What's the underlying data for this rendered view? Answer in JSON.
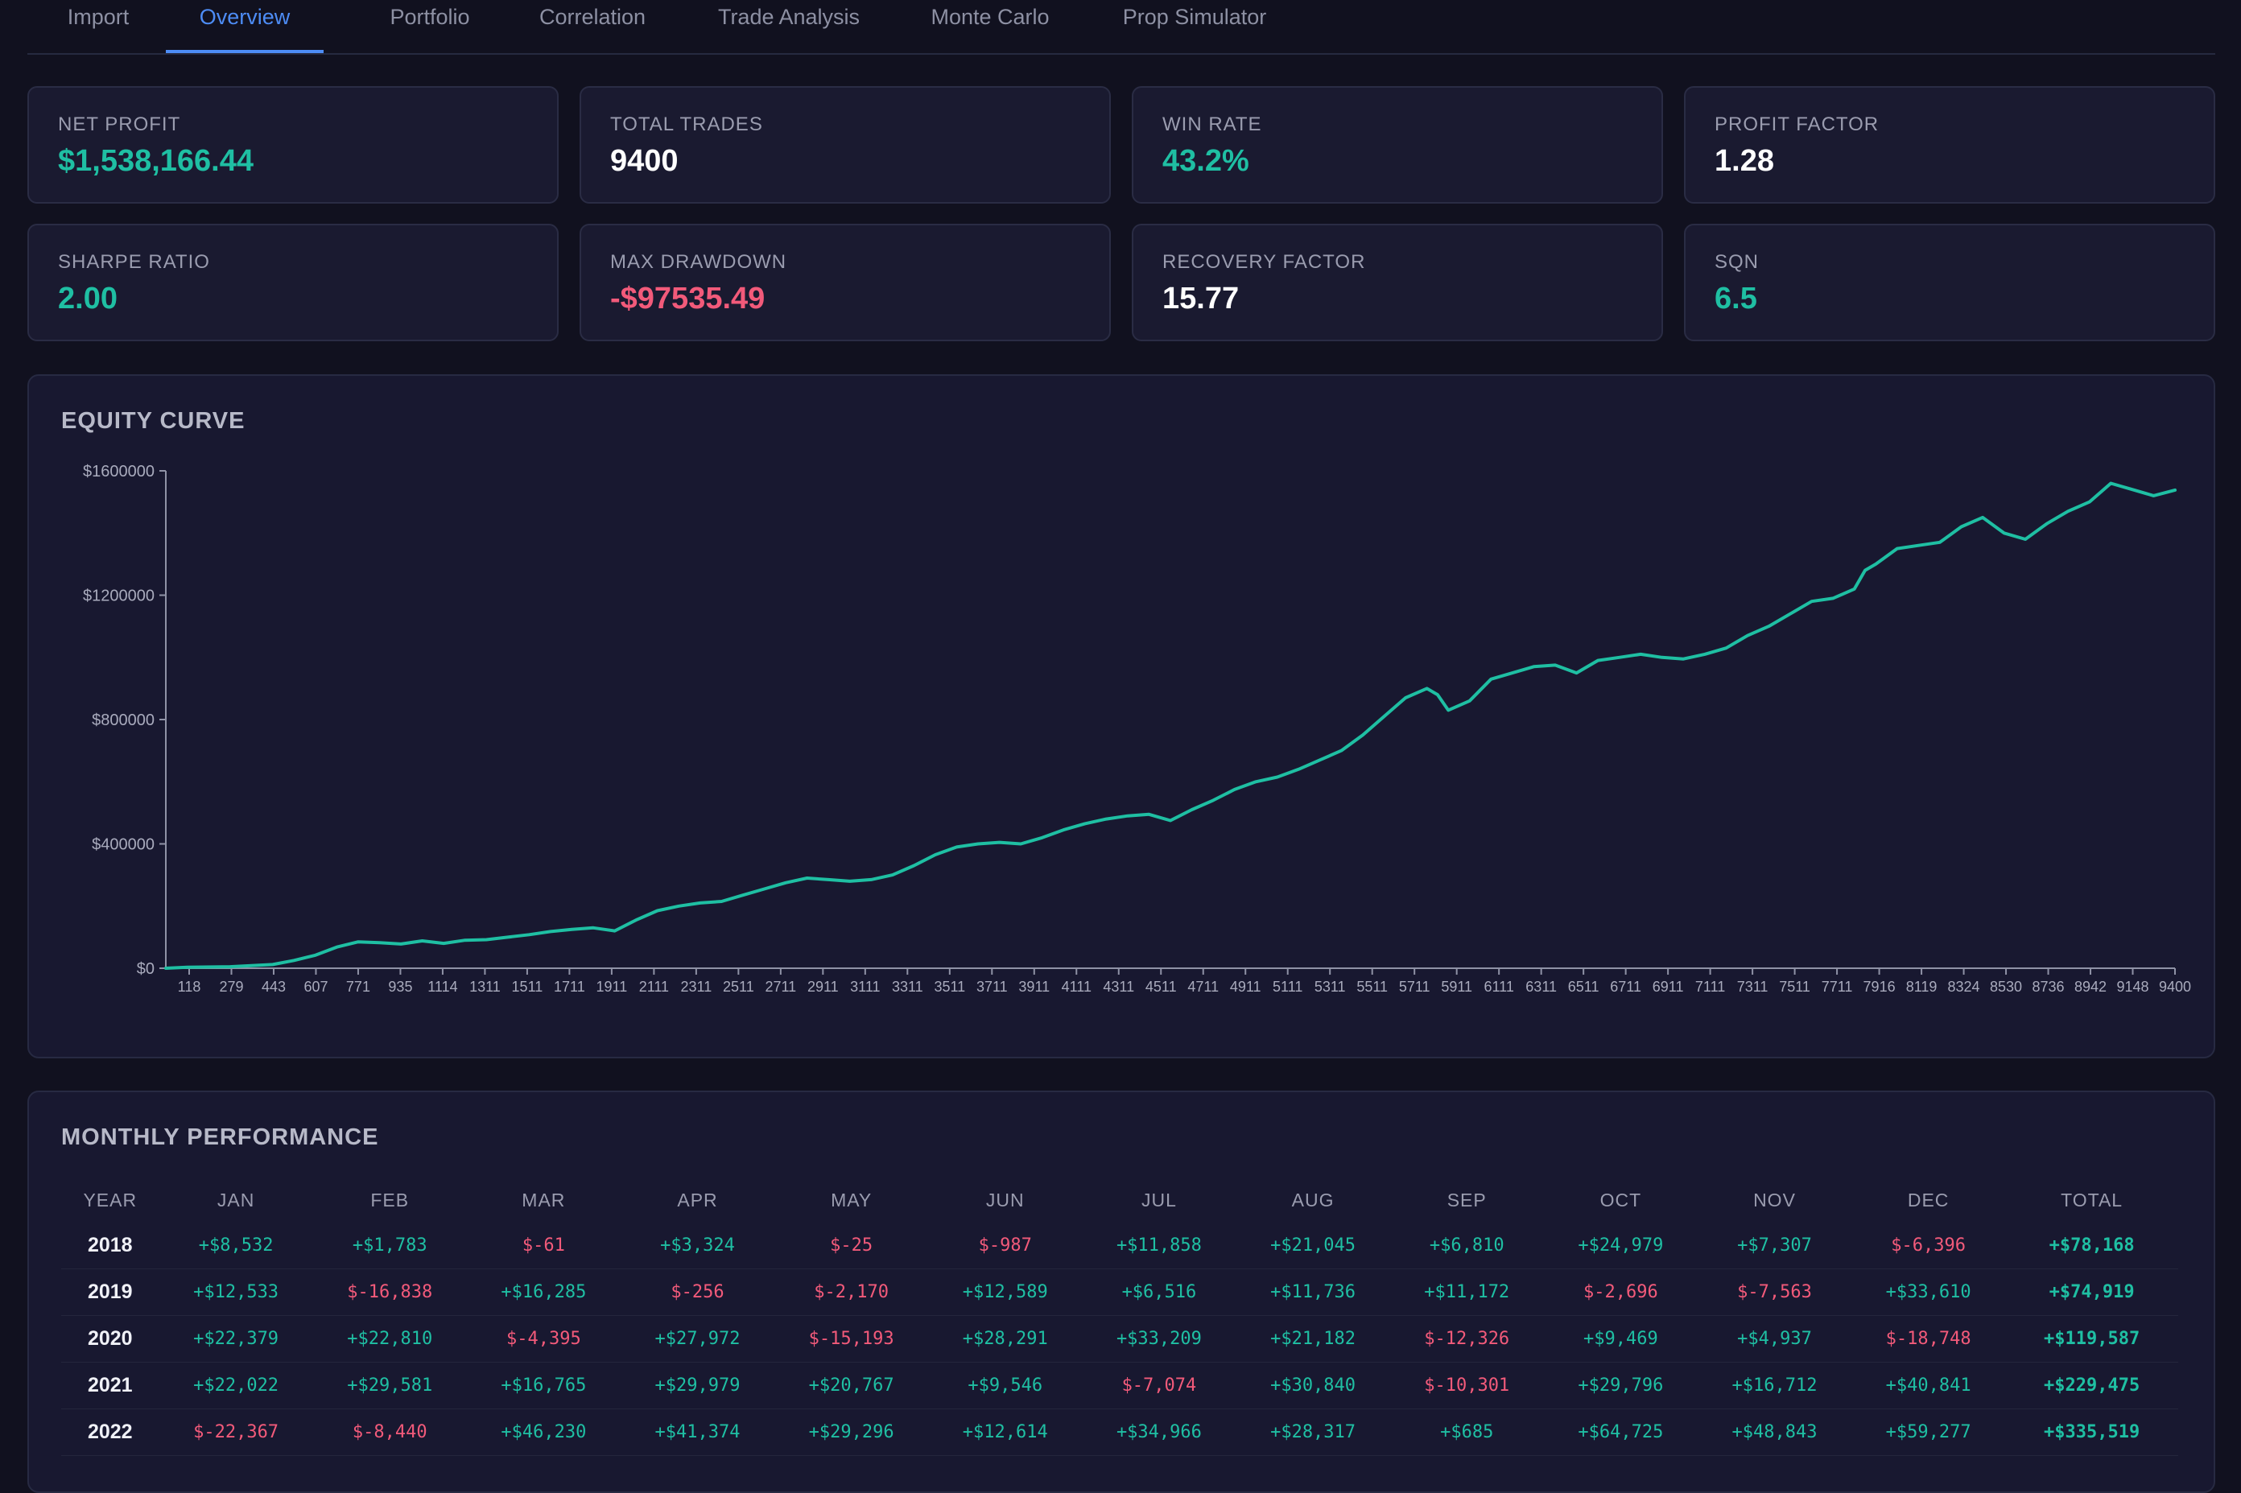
{
  "tabs": [
    {
      "label": "Import",
      "active": false
    },
    {
      "label": "Overview",
      "active": true
    },
    {
      "label": "Portfolio",
      "active": false
    },
    {
      "label": "Correlation",
      "active": false
    },
    {
      "label": "Trade Analysis",
      "active": false
    },
    {
      "label": "Monte Carlo",
      "active": false
    },
    {
      "label": "Prop Simulator",
      "active": false
    }
  ],
  "stats": [
    {
      "label": "NET PROFIT",
      "value": "$1,538,166.44",
      "tone": "pos"
    },
    {
      "label": "TOTAL TRADES",
      "value": "9400",
      "tone": "neu"
    },
    {
      "label": "WIN RATE",
      "value": "43.2%",
      "tone": "pos"
    },
    {
      "label": "PROFIT FACTOR",
      "value": "1.28",
      "tone": "neu"
    },
    {
      "label": "SHARPE RATIO",
      "value": "2.00",
      "tone": "pos"
    },
    {
      "label": "MAX DRAWDOWN",
      "value": "-$97535.49",
      "tone": "neg"
    },
    {
      "label": "RECOVERY FACTOR",
      "value": "15.77",
      "tone": "neu"
    },
    {
      "label": "SQN",
      "value": "6.5",
      "tone": "pos"
    }
  ],
  "equity": {
    "title": "EQUITY CURVE"
  },
  "chart_data": {
    "type": "line",
    "title": "EQUITY CURVE",
    "xlabel": "",
    "ylabel": "",
    "xlim": [
      0,
      9400
    ],
    "ylim": [
      0,
      1600000
    ],
    "yticks": [
      {
        "value": 0,
        "label": "$0"
      },
      {
        "value": 400000,
        "label": "$400000"
      },
      {
        "value": 800000,
        "label": "$800000"
      },
      {
        "value": 1200000,
        "label": "$1200000"
      },
      {
        "value": 1600000,
        "label": "$1600000"
      }
    ],
    "xticks": [
      "118",
      "279",
      "443",
      "607",
      "771",
      "935",
      "1114",
      "1311",
      "1511",
      "1711",
      "1911",
      "2111",
      "2311",
      "2511",
      "2711",
      "2911",
      "3111",
      "3311",
      "3511",
      "3711",
      "3911",
      "4111",
      "4311",
      "4511",
      "4711",
      "4911",
      "5111",
      "5311",
      "5511",
      "5711",
      "5911",
      "6111",
      "6311",
      "6511",
      "6711",
      "6911",
      "7111",
      "7311",
      "7511",
      "7711",
      "7916",
      "8119",
      "8324",
      "8530",
      "8736",
      "8942",
      "9148",
      "9400"
    ],
    "grid": false,
    "color": "#1fbfa3",
    "series": [
      {
        "x": [
          0,
          100,
          300,
          500,
          600,
          700,
          800,
          900,
          1000,
          1100,
          1200,
          1300,
          1400,
          1500,
          1600,
          1700,
          1800,
          1900,
          2000,
          2100,
          2200,
          2300,
          2400,
          2500,
          2600,
          2700,
          2800,
          2900,
          3000,
          3100,
          3200,
          3300,
          3400,
          3500,
          3600,
          3700,
          3800,
          3900,
          4000,
          4100,
          4200,
          4300,
          4400,
          4500,
          4600,
          4700,
          4800,
          4900,
          5000,
          5100,
          5200,
          5300,
          5400,
          5500,
          5600,
          5700,
          5800,
          5900,
          5950,
          6000,
          6100,
          6200,
          6300,
          6400,
          6500,
          6600,
          6700,
          6800,
          6900,
          7000,
          7100,
          7200,
          7300,
          7400,
          7500,
          7600,
          7700,
          7800,
          7900,
          7950,
          8000,
          8100,
          8200,
          8300,
          8400,
          8500,
          8600,
          8700,
          8800,
          8900,
          9000,
          9100,
          9200,
          9300,
          9400
        ],
        "y": [
          0,
          3000,
          5000,
          12000,
          25000,
          42000,
          68000,
          85000,
          82000,
          78000,
          88000,
          80000,
          90000,
          92000,
          100000,
          108000,
          118000,
          125000,
          130000,
          120000,
          155000,
          185000,
          200000,
          210000,
          215000,
          235000,
          255000,
          275000,
          290000,
          285000,
          280000,
          285000,
          300000,
          330000,
          365000,
          390000,
          400000,
          405000,
          400000,
          420000,
          445000,
          465000,
          480000,
          490000,
          495000,
          475000,
          510000,
          540000,
          575000,
          600000,
          615000,
          640000,
          670000,
          700000,
          750000,
          810000,
          870000,
          900000,
          880000,
          830000,
          860000,
          930000,
          950000,
          970000,
          975000,
          950000,
          990000,
          1000000,
          1010000,
          1000000,
          995000,
          1010000,
          1030000,
          1070000,
          1100000,
          1140000,
          1180000,
          1190000,
          1220000,
          1280000,
          1300000,
          1350000,
          1360000,
          1370000,
          1420000,
          1450000,
          1400000,
          1380000,
          1430000,
          1470000,
          1500000,
          1560000,
          1540000,
          1520000,
          1538166
        ]
      }
    ]
  },
  "monthly": {
    "title": "MONTHLY PERFORMANCE",
    "headers": [
      "YEAR",
      "JAN",
      "FEB",
      "MAR",
      "APR",
      "MAY",
      "JUN",
      "JUL",
      "AUG",
      "SEP",
      "OCT",
      "NOV",
      "DEC",
      "TOTAL"
    ],
    "rows": [
      {
        "year": "2018",
        "cells": [
          "+$8,532",
          "+$1,783",
          "$-61",
          "+$3,324",
          "$-25",
          "$-987",
          "+$11,858",
          "+$21,045",
          "+$6,810",
          "+$24,979",
          "+$7,307",
          "$-6,396"
        ],
        "total": "+$78,168"
      },
      {
        "year": "2019",
        "cells": [
          "+$12,533",
          "$-16,838",
          "+$16,285",
          "$-256",
          "$-2,170",
          "+$12,589",
          "+$6,516",
          "+$11,736",
          "+$11,172",
          "$-2,696",
          "$-7,563",
          "+$33,610"
        ],
        "total": "+$74,919"
      },
      {
        "year": "2020",
        "cells": [
          "+$22,379",
          "+$22,810",
          "$-4,395",
          "+$27,972",
          "$-15,193",
          "+$28,291",
          "+$33,209",
          "+$21,182",
          "$-12,326",
          "+$9,469",
          "+$4,937",
          "$-18,748"
        ],
        "total": "+$119,587"
      },
      {
        "year": "2021",
        "cells": [
          "+$22,022",
          "+$29,581",
          "+$16,765",
          "+$29,979",
          "+$20,767",
          "+$9,546",
          "$-7,074",
          "+$30,840",
          "$-10,301",
          "+$29,796",
          "+$16,712",
          "+$40,841"
        ],
        "total": "+$229,475"
      },
      {
        "year": "2022",
        "cells": [
          "$-22,367",
          "$-8,440",
          "+$46,230",
          "+$41,374",
          "+$29,296",
          "+$12,614",
          "+$34,966",
          "+$28,317",
          "+$685",
          "+$64,725",
          "+$48,843",
          "+$59,277"
        ],
        "total": "+$335,519"
      }
    ]
  }
}
